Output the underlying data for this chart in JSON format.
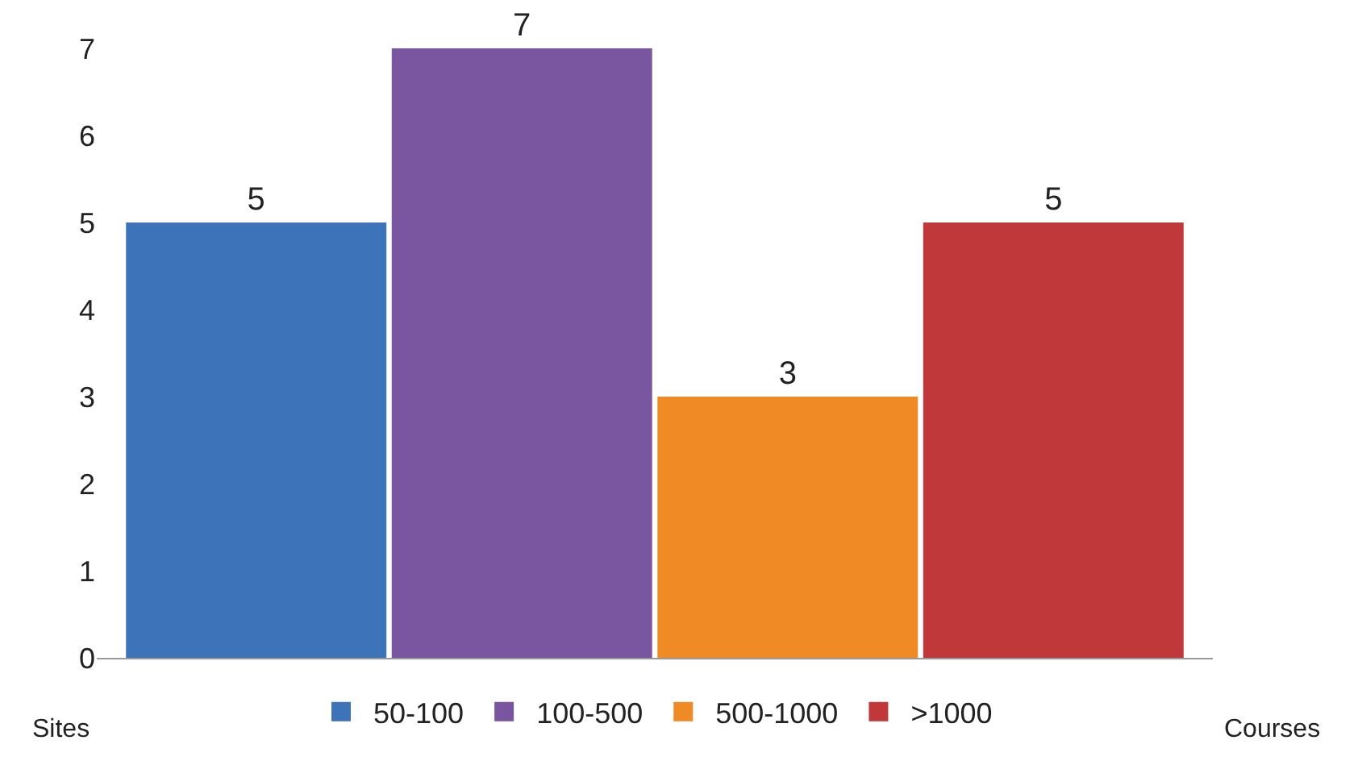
{
  "chart_data": {
    "type": "bar",
    "categories": [
      null,
      null,
      null,
      null
    ],
    "series": [
      {
        "name": "50-100",
        "color": "#3d73b8",
        "values": [
          5,
          null,
          null,
          null
        ]
      },
      {
        "name": "100-500",
        "color": "#7a55a0",
        "values": [
          null,
          7,
          null,
          null
        ]
      },
      {
        "name": "500-1000",
        "color": "#f08a24",
        "values": [
          null,
          null,
          3,
          null
        ]
      },
      {
        "name": ">1000",
        "color": "#c0383a",
        "values": [
          null,
          null,
          null,
          5
        ]
      }
    ],
    "ylim": [
      0,
      7
    ],
    "yticks": [
      0,
      1,
      2,
      3,
      4,
      5,
      6,
      7
    ],
    "legend": "bottom",
    "data_labels": true,
    "ylabel": "Sites",
    "xlabel": "Courses"
  }
}
